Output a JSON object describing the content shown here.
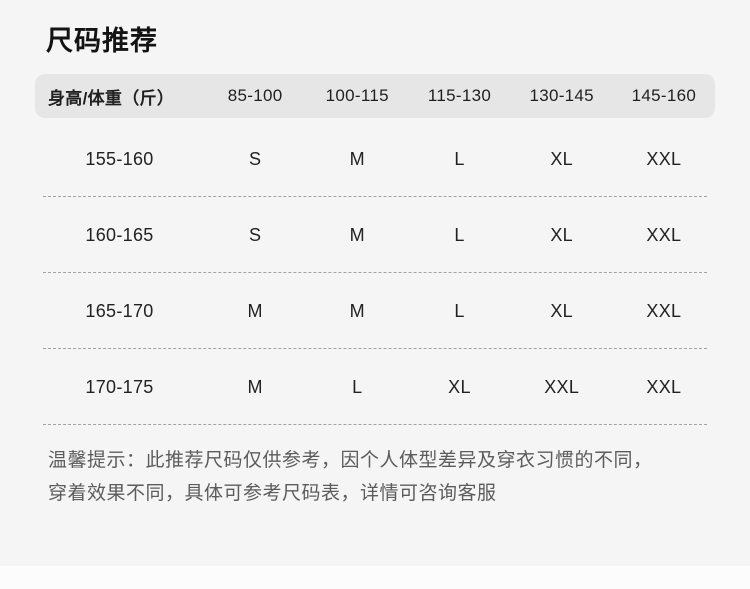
{
  "page": {
    "title": "尺码推荐"
  },
  "table": {
    "headers": [
      "身高/体重（斤）",
      "85-100",
      "100-115",
      "115-130",
      "130-145",
      "145-160"
    ],
    "rows": [
      {
        "label": "155-160",
        "sizes": [
          "S",
          "M",
          "L",
          "XL",
          "XXL"
        ]
      },
      {
        "label": "160-165",
        "sizes": [
          "S",
          "M",
          "L",
          "XL",
          "XXL"
        ]
      },
      {
        "label": "165-170",
        "sizes": [
          "M",
          "M",
          "L",
          "XL",
          "XXL"
        ]
      },
      {
        "label": "170-175",
        "sizes": [
          "M",
          "L",
          "XL",
          "XXL",
          "XXL"
        ]
      }
    ]
  },
  "note": {
    "lines": [
      "温馨提示：此推荐尺码仅供参考，因个人体型差异及穿衣习惯的不同，",
      "穿着效果不同，具体可参考尺码表，详情可咨询客服"
    ]
  },
  "colors": {
    "background": "#f5f5f6",
    "header_bar": "#e6e6e7",
    "text": "#1f1f1f",
    "note_text": "#5c5c5c",
    "divider": "#a3a3a3",
    "bottom_strip": "#fcfcfc"
  }
}
